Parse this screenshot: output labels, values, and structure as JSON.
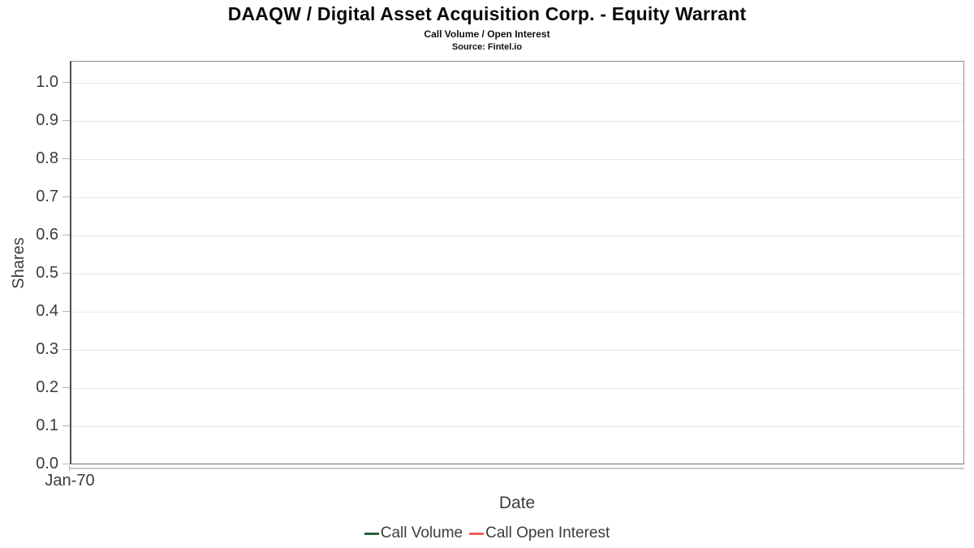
{
  "header": {
    "title": "DAAQW / Digital Asset Acquisition Corp. - Equity Warrant",
    "subtitle": "Call Volume / Open Interest",
    "source": "Source: Fintel.io"
  },
  "chart_data": {
    "type": "line",
    "title": "DAAQW / Digital Asset Acquisition Corp. - Equity Warrant",
    "subtitle": "Call Volume / Open Interest",
    "source": "Source: Fintel.io",
    "xlabel": "Date",
    "ylabel": "Shares",
    "x_ticks": [
      "Jan-70"
    ],
    "y_ticks": [
      0.0,
      0.1,
      0.2,
      0.3,
      0.4,
      0.5,
      0.6,
      0.7,
      0.8,
      0.9,
      1.0
    ],
    "ylim": [
      0.0,
      1.06
    ],
    "grid": "horizontal",
    "legend_position": "bottom",
    "series": [
      {
        "name": "Call Volume",
        "color": "#2c5e3f",
        "x": [],
        "values": []
      },
      {
        "name": "Call Open Interest",
        "color": "#f1605d",
        "x": [],
        "values": []
      }
    ]
  },
  "colors": {
    "call_volume": "#2c5e3f",
    "call_open_interest": "#f1605d",
    "gridline": "#e7e7e7",
    "axis_text": "#3c3c3c"
  }
}
